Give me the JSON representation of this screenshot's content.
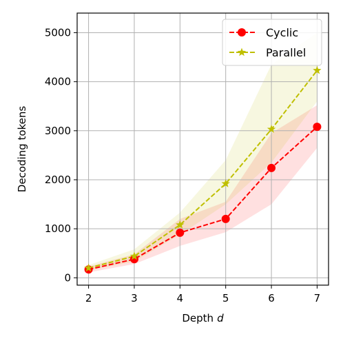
{
  "chart_data": {
    "type": "line",
    "xlabel": "Depth",
    "xlabel_var": "d",
    "ylabel": "Decoding tokens",
    "x": [
      2,
      3,
      4,
      5,
      6,
      7
    ],
    "xlim": [
      1.75,
      7.25
    ],
    "ylim": [
      -150,
      5400
    ],
    "xticks": [
      2,
      3,
      4,
      5,
      6,
      7
    ],
    "yticks": [
      0,
      1000,
      2000,
      3000,
      4000,
      5000
    ],
    "grid": true,
    "legend_position": "top-right",
    "series": [
      {
        "name": "Cyclic",
        "color": "#ff0000",
        "marker": "circle",
        "values": [
          170,
          380,
          920,
          1200,
          2240,
          3080
        ],
        "band_low": [
          110,
          280,
          650,
          930,
          1500,
          2650
        ],
        "band_high": [
          230,
          480,
          1200,
          1550,
          2950,
          3520
        ]
      },
      {
        "name": "Parallel",
        "color": "#bfbf00",
        "marker": "star",
        "values": [
          200,
          440,
          1080,
          1920,
          3030,
          4230
        ],
        "band_low": [
          150,
          330,
          880,
          1500,
          2350,
          3600
        ],
        "band_high": [
          260,
          580,
          1330,
          2400,
          4350,
          5000
        ]
      }
    ]
  }
}
